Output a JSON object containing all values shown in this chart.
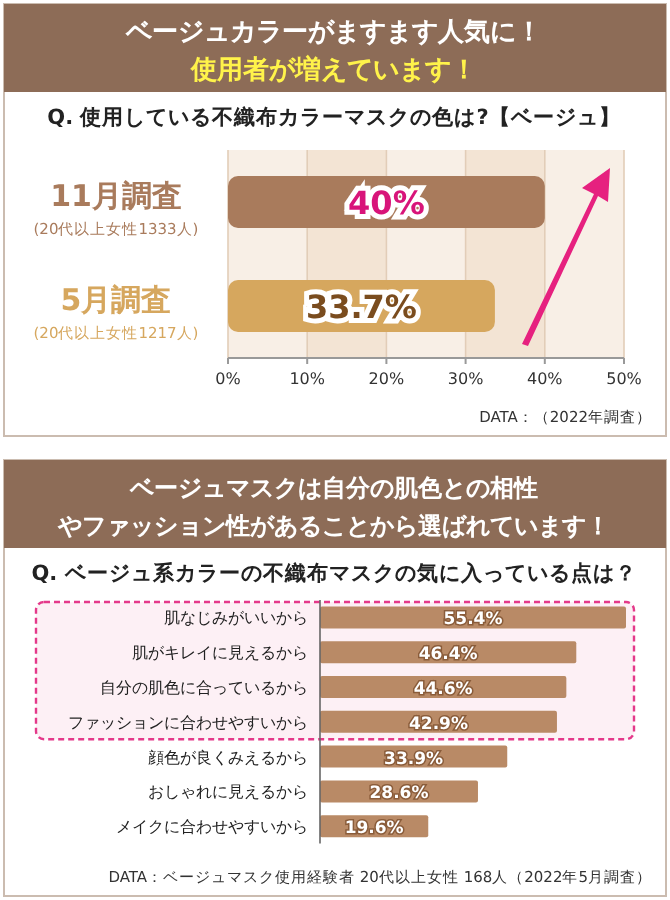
{
  "chart_data": [
    {
      "type": "bar",
      "orientation": "horizontal",
      "title": "ベージュカラーがますます人気に！",
      "subtitle": "使用者が増えています！",
      "annotations": [
        "Q. 使用している不織布カラーマスクの色は?【ベージュ】",
        "DATA：（2022年調査）"
      ],
      "categories": [
        "11月調査(20代以上女性1333人)",
        "5月調査(20代以上女性1217人)"
      ],
      "values": [
        40,
        33.7
      ],
      "colors": [
        "#a97b5c",
        "#d6a75e"
      ],
      "value_labels": [
        "40%",
        "33.7%"
      ],
      "xlim": [
        0,
        50
      ],
      "xticks": [
        {
          "value": 0,
          "label": "0%"
        },
        {
          "value": 10,
          "label": "10%"
        },
        {
          "value": 20,
          "label": "20%"
        },
        {
          "value": 30,
          "label": "30%"
        },
        {
          "value": 40,
          "label": "40%"
        },
        {
          "value": 50,
          "label": "50%"
        }
      ],
      "grid": "x"
    },
    {
      "type": "bar",
      "orientation": "horizontal",
      "title": "ベージュマスクは自分の肌色との相性やファッション性があることから選ばれています！",
      "annotations": [
        "Q. ベージュ系カラーの不織布マスクの気に入っている点は？",
        "DATA：ベージュマスク使用経験者 20代以上女性 168人（2022年5月調査）"
      ],
      "categories": [
        "肌なじみがいいから",
        "肌がキレイに見えるから",
        "自分の肌色に合っているから",
        "ファッションに合わせやすいから",
        "顔色が良くみえるから",
        "おしゃれに見えるから",
        "メイクに合わせやすいから"
      ],
      "values": [
        55.4,
        46.4,
        44.6,
        42.9,
        33.9,
        28.6,
        19.6
      ],
      "color": "#b98a66",
      "bands": [
        {
          "axis": "y",
          "from": "肌なじみがいいから",
          "to": "ファッションに合わせやすいから",
          "color": "#fdf0f5"
        }
      ],
      "value_labels": [
        "55.4%",
        "46.4%",
        "44.6%",
        "42.9%",
        "33.9%",
        "28.6%",
        "19.6%"
      ]
    }
  ]
}
